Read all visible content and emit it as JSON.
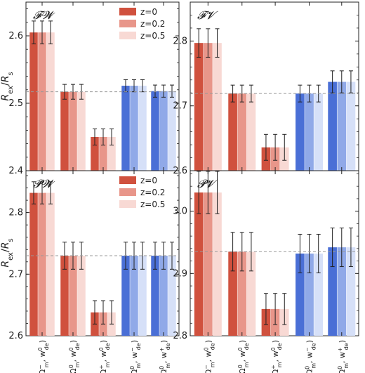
{
  "colors": {
    "red_z0": "#d0513e",
    "red_z02": "#e8968a",
    "red_z05": "#f8d9d4",
    "blue_z0": "#4a6fd6",
    "blue_z02": "#90a9e8",
    "blue_z05": "#d6e0f8",
    "errorbar": "#222222",
    "refline": "#999999"
  },
  "chart_data": [
    {
      "type": "bar",
      "panel_label": "𝓕𝓦",
      "ylim": [
        2.4,
        2.65
      ],
      "yticks": [
        "2.4",
        "2.5",
        "2.6"
      ],
      "ref_value": 2.517,
      "legend": [
        "z=0",
        "z=0.2",
        "z=0.5"
      ],
      "groups": [
        {
          "values": [
            2.605,
            2.605,
            2.605
          ],
          "err": [
            0.017,
            0.017,
            0.017
          ],
          "color": "red"
        },
        {
          "values": [
            2.517,
            2.517,
            2.517
          ],
          "err": [
            0.011,
            0.011,
            0.011
          ],
          "color": "red"
        },
        {
          "values": [
            2.45,
            2.45,
            2.45
          ],
          "err": [
            0.012,
            0.012,
            0.012
          ],
          "color": "red"
        },
        {
          "values": [
            2.526,
            2.526,
            2.526
          ],
          "err": [
            0.009,
            0.009,
            0.009
          ],
          "color": "blue"
        },
        {
          "values": [
            2.518,
            2.518,
            2.518
          ],
          "err": [
            0.009,
            0.009,
            0.009
          ],
          "color": "blue"
        }
      ]
    },
    {
      "type": "bar",
      "panel_label": "𝓕𝓥",
      "ylim": [
        2.6,
        2.86
      ],
      "yticks": [
        "2.6",
        "2.7",
        "2.8"
      ],
      "ref_value": 2.719,
      "legend": [],
      "groups": [
        {
          "values": [
            2.797,
            2.797,
            2.797
          ],
          "err": [
            0.022,
            0.022,
            0.022
          ],
          "color": "red"
        },
        {
          "values": [
            2.719,
            2.719,
            2.719
          ],
          "err": [
            0.013,
            0.013,
            0.013
          ],
          "color": "red"
        },
        {
          "values": [
            2.636,
            2.636,
            2.636
          ],
          "err": [
            0.02,
            0.02,
            0.02
          ],
          "color": "red"
        },
        {
          "values": [
            2.719,
            2.719,
            2.719
          ],
          "err": [
            0.013,
            0.013,
            0.013
          ],
          "color": "blue"
        },
        {
          "values": [
            2.737,
            2.737,
            2.737
          ],
          "err": [
            0.017,
            0.017,
            0.017
          ],
          "color": "blue"
        }
      ]
    },
    {
      "type": "bar",
      "panel_label": "𝓟𝓦",
      "ylim": [
        2.6,
        2.868
      ],
      "yticks": [
        "2.6",
        "2.7",
        "2.8"
      ],
      "ref_value": 2.73,
      "legend": [
        "z=0",
        "z=0.2",
        "z=0.5"
      ],
      "groups": [
        {
          "values": [
            2.832,
            2.832,
            2.832
          ],
          "err": [
            0.018,
            0.018,
            0.018
          ],
          "color": "red"
        },
        {
          "values": [
            2.73,
            2.73,
            2.73
          ],
          "err": [
            0.022,
            0.022,
            0.022
          ],
          "color": "red"
        },
        {
          "values": [
            2.638,
            2.638,
            2.638
          ],
          "err": [
            0.019,
            0.019,
            0.019
          ],
          "color": "red"
        },
        {
          "values": [
            2.73,
            2.73,
            2.73
          ],
          "err": [
            0.022,
            0.022,
            0.022
          ],
          "color": "blue"
        },
        {
          "values": [
            2.73,
            2.73,
            2.73
          ],
          "err": [
            0.022,
            0.022,
            0.022
          ],
          "color": "blue"
        }
      ]
    },
    {
      "type": "bar",
      "panel_label": "𝓟𝓥",
      "ylim": [
        2.8,
        3.065
      ],
      "yticks": [
        "2.8",
        "2.9",
        "3.0"
      ],
      "ref_value": 2.935,
      "legend": [],
      "groups": [
        {
          "values": [
            3.03,
            3.03,
            3.03
          ],
          "err": [
            0.034,
            0.034,
            0.034
          ],
          "color": "red"
        },
        {
          "values": [
            2.935,
            2.935,
            2.935
          ],
          "err": [
            0.031,
            0.031,
            0.031
          ],
          "color": "red"
        },
        {
          "values": [
            2.843,
            2.843,
            2.843
          ],
          "err": [
            0.025,
            0.025,
            0.025
          ],
          "color": "red"
        },
        {
          "values": [
            2.932,
            2.932,
            2.932
          ],
          "err": [
            0.031,
            0.031,
            0.031
          ],
          "color": "blue"
        },
        {
          "values": [
            2.942,
            2.942,
            2.942
          ],
          "err": [
            0.031,
            0.031,
            0.031
          ],
          "color": "blue"
        }
      ]
    }
  ],
  "ylabel": "R_ex/R_s",
  "xtick_labels": [
    {
      "om": "Ω",
      "om_sup": "",
      "om_sub": "m",
      "om_mod": "−",
      "w": "w",
      "w_sup": "0",
      "w_sub": "de"
    },
    {
      "om": "Ω",
      "om_sup": "0",
      "om_sub": "m",
      "om_mod": "",
      "w": "w",
      "w_sup": "0",
      "w_sub": "de"
    },
    {
      "om": "Ω",
      "om_sup": "",
      "om_sub": "m",
      "om_mod": "+",
      "w": "w",
      "w_sup": "0",
      "w_sub": "de"
    },
    {
      "om": "Ω",
      "om_sup": "0",
      "om_sub": "m",
      "om_mod": "",
      "w": "w",
      "w_sup": "",
      "w_sub": "de",
      "w_mod": "−"
    },
    {
      "om": "Ω",
      "om_sup": "0",
      "om_sub": "m",
      "om_mod": "",
      "w": "w",
      "w_sup": "",
      "w_sub": "de",
      "w_mod": "+"
    }
  ]
}
